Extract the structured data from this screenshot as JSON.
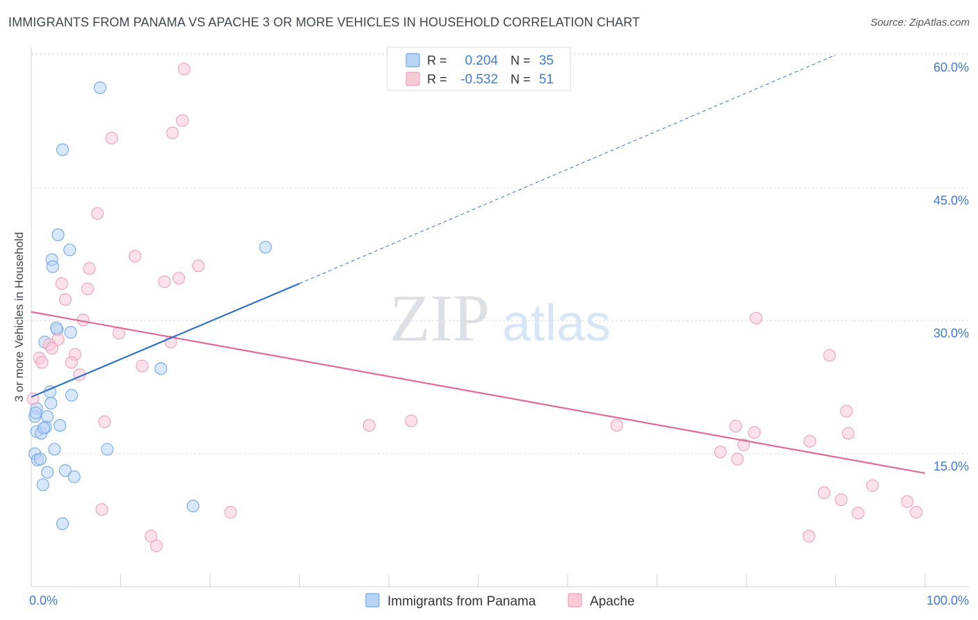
{
  "title": "IMMIGRANTS FROM PANAMA VS APACHE 3 OR MORE VEHICLES IN HOUSEHOLD CORRELATION CHART",
  "source": "Source: ZipAtlas.com",
  "watermark": {
    "zip": "ZIP",
    "atlas": "atlas"
  },
  "legend_top": [
    {
      "r_label": "R =",
      "r_value": "0.204",
      "n_label": "N =",
      "n_value": "35",
      "color": "#6fa8ea",
      "fill": "#b9d3f5"
    },
    {
      "r_label": "R =",
      "r_value": "-0.532",
      "n_label": "N =",
      "n_value": "51",
      "color": "#f0a0ba",
      "fill": "#f8c9d7"
    }
  ],
  "colors": {
    "blue_line": "#2f72c8",
    "pink_line": "#e06a95",
    "value_text": "#3d7bd0",
    "grid": "#dde1e6"
  },
  "chart_data": {
    "type": "scatter",
    "xlabel": "",
    "ylabel": "3 or more Vehicles in Household",
    "xlim": [
      0,
      100
    ],
    "ylim": [
      0,
      63
    ],
    "x_tick_labels": [
      {
        "value": 0,
        "label": "0.0%"
      },
      {
        "value": 100,
        "label": "100.0%"
      }
    ],
    "y_tick_labels": [
      {
        "value": 15,
        "label": "15.0%"
      },
      {
        "value": 30,
        "label": "30.0%"
      },
      {
        "value": 45,
        "label": "45.0%"
      },
      {
        "value": 60,
        "label": "60.0%"
      }
    ],
    "legend_position": "bottom-center",
    "series": [
      {
        "name": "Immigrants from Panama",
        "color": "#6fa8ea",
        "fill": "#b9d3f5",
        "points": [
          [
            7.7,
            56.3
          ],
          [
            3.5,
            49.3
          ],
          [
            3.0,
            39.7
          ],
          [
            4.3,
            38.0
          ],
          [
            2.3,
            36.9
          ],
          [
            2.4,
            36.1
          ],
          [
            26.2,
            38.3
          ],
          [
            2.9,
            29.0
          ],
          [
            4.4,
            28.7
          ],
          [
            1.5,
            27.6
          ],
          [
            2.8,
            29.2
          ],
          [
            14.5,
            24.6
          ],
          [
            2.1,
            22.0
          ],
          [
            4.5,
            21.6
          ],
          [
            2.2,
            20.7
          ],
          [
            0.6,
            20.1
          ],
          [
            0.4,
            19.2
          ],
          [
            0.5,
            19.6
          ],
          [
            1.8,
            19.2
          ],
          [
            0.6,
            17.5
          ],
          [
            1.1,
            17.3
          ],
          [
            1.6,
            18.0
          ],
          [
            3.2,
            18.2
          ],
          [
            1.4,
            17.9
          ],
          [
            8.5,
            15.5
          ],
          [
            2.6,
            15.5
          ],
          [
            0.4,
            15.0
          ],
          [
            0.7,
            14.3
          ],
          [
            1.0,
            14.4
          ],
          [
            1.8,
            12.9
          ],
          [
            3.8,
            13.1
          ],
          [
            4.8,
            12.4
          ],
          [
            1.3,
            11.5
          ],
          [
            18.1,
            9.1
          ],
          [
            3.5,
            7.1
          ]
        ],
        "trend_solid": [
          [
            0,
            21.4
          ],
          [
            30,
            34.2
          ]
        ],
        "trend_dashed": [
          [
            30,
            34.2
          ],
          [
            90,
            60.0
          ]
        ]
      },
      {
        "name": "Apache",
        "color": "#f0a0ba",
        "fill": "#f8c9d7",
        "points": [
          [
            17.1,
            58.4
          ],
          [
            16.9,
            52.6
          ],
          [
            15.8,
            51.2
          ],
          [
            9.0,
            50.6
          ],
          [
            7.4,
            42.1
          ],
          [
            11.6,
            37.3
          ],
          [
            6.5,
            35.9
          ],
          [
            18.7,
            36.2
          ],
          [
            16.5,
            34.8
          ],
          [
            14.9,
            34.4
          ],
          [
            3.4,
            34.2
          ],
          [
            6.3,
            33.6
          ],
          [
            3.8,
            32.4
          ],
          [
            5.8,
            30.1
          ],
          [
            9.8,
            28.6
          ],
          [
            15.6,
            27.6
          ],
          [
            3.0,
            27.9
          ],
          [
            2.0,
            27.3
          ],
          [
            2.3,
            26.9
          ],
          [
            0.9,
            25.8
          ],
          [
            1.2,
            25.3
          ],
          [
            4.9,
            26.2
          ],
          [
            4.5,
            25.3
          ],
          [
            12.4,
            24.9
          ],
          [
            5.4,
            23.9
          ],
          [
            8.2,
            18.6
          ],
          [
            37.8,
            18.2
          ],
          [
            42.5,
            18.7
          ],
          [
            65.5,
            18.2
          ],
          [
            81.1,
            30.3
          ],
          [
            89.3,
            26.1
          ],
          [
            91.2,
            19.8
          ],
          [
            78.8,
            18.1
          ],
          [
            80.9,
            17.4
          ],
          [
            79.7,
            16.0
          ],
          [
            77.1,
            15.2
          ],
          [
            79.0,
            14.4
          ],
          [
            87.1,
            16.4
          ],
          [
            91.4,
            17.3
          ],
          [
            94.1,
            11.4
          ],
          [
            88.7,
            10.6
          ],
          [
            90.6,
            9.8
          ],
          [
            92.5,
            8.3
          ],
          [
            98.0,
            9.6
          ],
          [
            99.0,
            8.4
          ],
          [
            7.9,
            8.7
          ],
          [
            22.3,
            8.4
          ],
          [
            13.4,
            5.7
          ],
          [
            14.0,
            4.6
          ],
          [
            87.0,
            5.7
          ],
          [
            0.2,
            21.2
          ]
        ],
        "trend_solid": [
          [
            0,
            31.0
          ],
          [
            100,
            12.8
          ]
        ]
      }
    ]
  }
}
